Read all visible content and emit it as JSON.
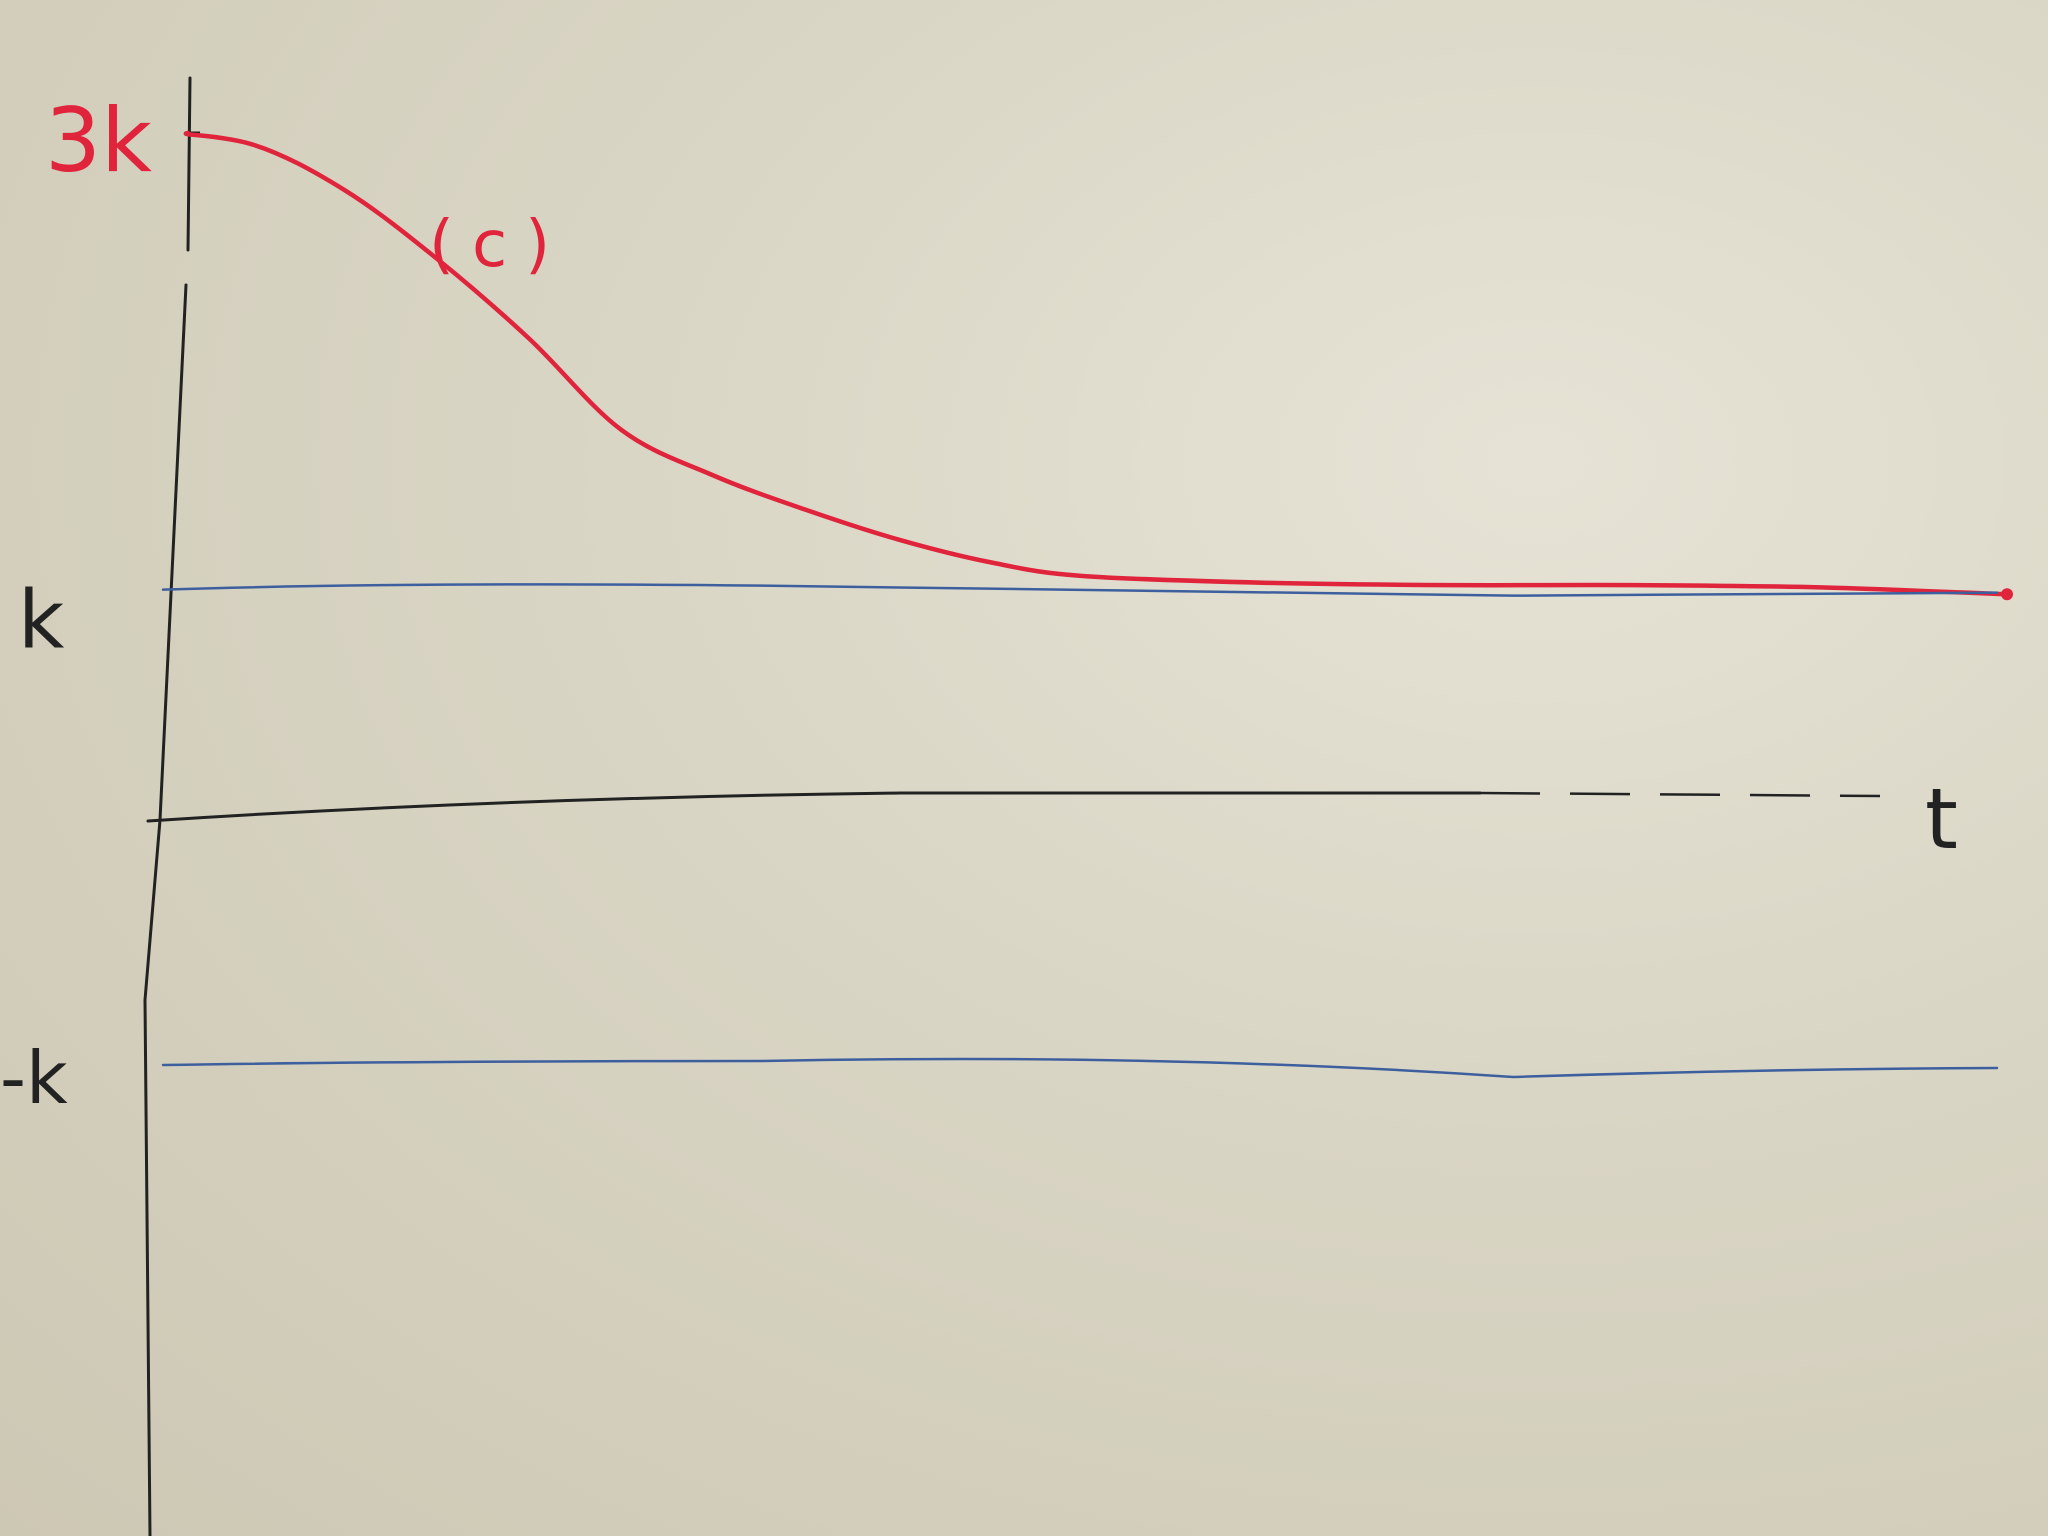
{
  "chart_data": {
    "type": "line",
    "title": "",
    "xlabel": "t",
    "ylabel": "",
    "y_tick_labels": [
      {
        "value": 3,
        "label": "3k"
      },
      {
        "value": 1,
        "label": "k"
      },
      {
        "value": -1,
        "label": "-k"
      }
    ],
    "ylim": [
      -2.5,
      3.4
    ],
    "xlim": [
      0,
      10
    ],
    "grid": false,
    "legend": "none",
    "annotations": [
      {
        "text": "(c)",
        "x": 2.0,
        "y": 2.55,
        "color": "#e0243c"
      }
    ],
    "series": [
      {
        "color": "#e0243c",
        "style": "curve",
        "x": [
          0,
          0.5,
          1.0,
          1.5,
          2.0,
          2.5,
          3.0,
          3.5,
          4.0,
          4.5,
          5.0,
          6.0,
          7.0,
          8.0,
          9.0,
          10.0
        ],
        "y": [
          3.0,
          2.95,
          2.75,
          2.45,
          2.1,
          1.7,
          1.5,
          1.35,
          1.22,
          1.12,
          1.06,
          1.03,
          1.02,
          1.02,
          1.01,
          0.98
        ]
      },
      {
        "color": "#3d5f9e",
        "style": "equilibrium",
        "x": [
          0,
          10
        ],
        "y": [
          1,
          1
        ]
      },
      {
        "color": "#3d5f9e",
        "style": "equilibrium",
        "x": [
          0,
          10
        ],
        "y": [
          -1,
          -1
        ]
      }
    ],
    "axis_color": "#222222"
  }
}
